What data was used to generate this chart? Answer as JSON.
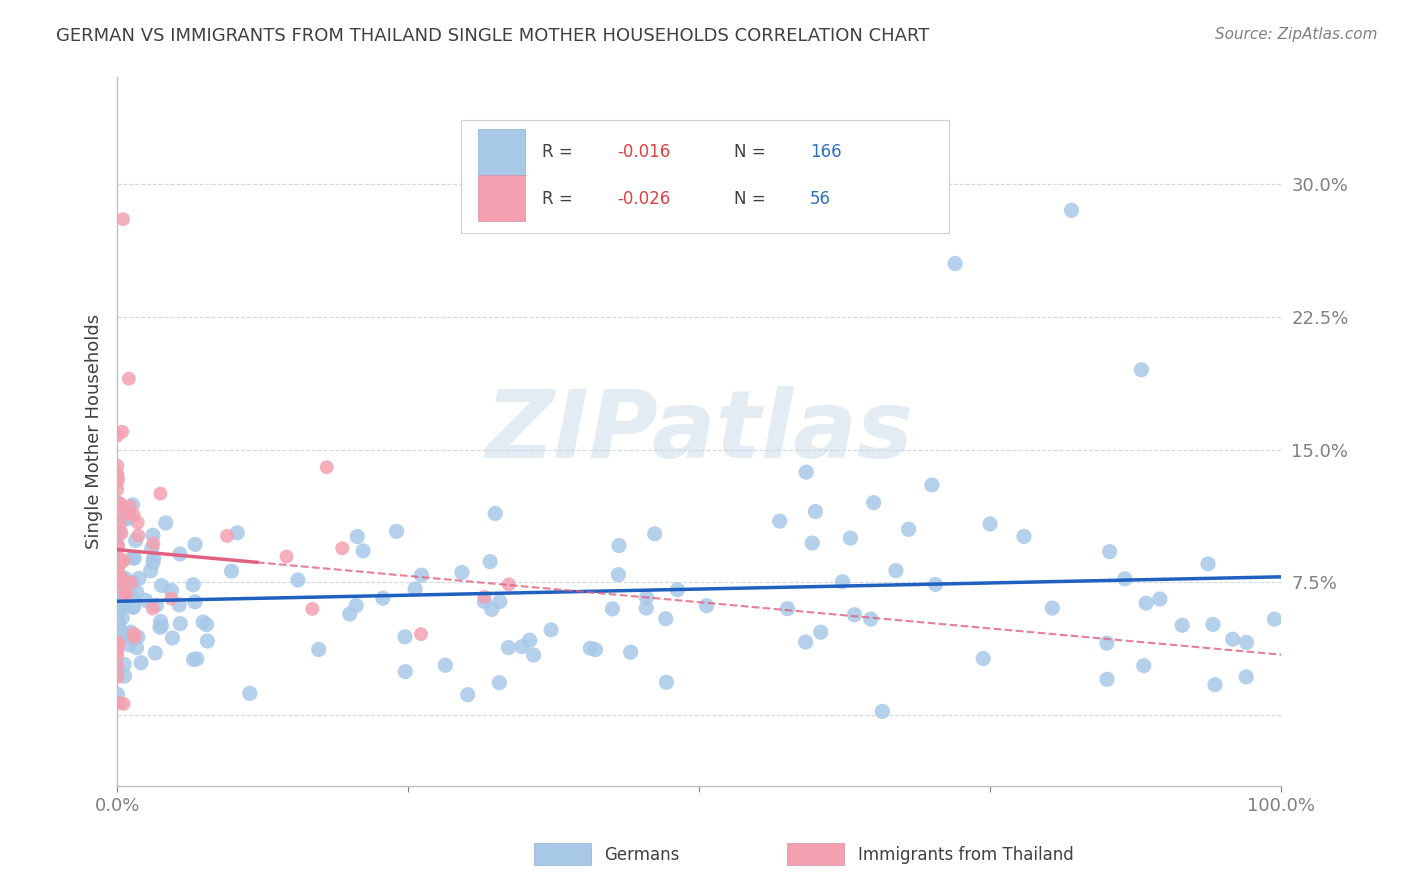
{
  "title": "GERMAN VS IMMIGRANTS FROM THAILAND SINGLE MOTHER HOUSEHOLDS CORRELATION CHART",
  "source": "Source: ZipAtlas.com",
  "ylabel": "Single Mother Households",
  "xlabel": "",
  "r_german": -0.016,
  "n_german": 166,
  "r_thailand": -0.026,
  "n_thailand": 56,
  "xlim": [
    0,
    1.0
  ],
  "ylim": [
    -0.04,
    0.36
  ],
  "yticks": [
    0.0,
    0.075,
    0.15,
    0.225,
    0.3
  ],
  "ytick_labels": [
    "",
    "7.5%",
    "15.0%",
    "22.5%",
    "30.0%"
  ],
  "xticks": [
    0.0,
    0.25,
    0.5,
    0.75,
    1.0
  ],
  "xtick_labels": [
    "0.0%",
    "",
    "",
    "",
    "100.0%"
  ],
  "german_color": "#a8c8e8",
  "thailand_color": "#f4a0b0",
  "german_line_color": "#2060c0",
  "thailand_line_color": "#e06080",
  "watermark": "ZIPatlas",
  "background_color": "#ffffff",
  "title_color": "#404040",
  "axis_label_color": "#404040",
  "tick_label_color": "#4080c0",
  "legend_label_german": "Germans",
  "legend_label_thailand": "Immigrants from Thailand"
}
